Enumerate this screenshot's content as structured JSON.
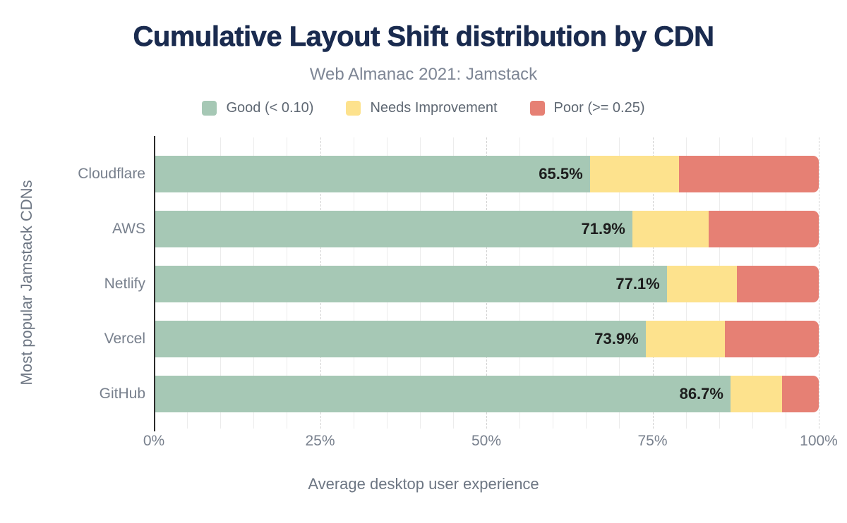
{
  "title": "Cumulative Layout Shift distribution by CDN",
  "subtitle": "Web Almanac 2021: Jamstack",
  "y_axis_title": "Most popular Jamstack CDNs",
  "x_axis_title": "Average desktop user experience",
  "legend": [
    {
      "label": "Good (< 0.10)"
    },
    {
      "label": "Needs Improvement"
    },
    {
      "label": "Poor (>= 0.25)"
    }
  ],
  "colors": {
    "good": "#a6c8b5",
    "needs_improvement": "#fde28d",
    "poor": "#e68074",
    "title_text": "#1a2b4f",
    "subtitle_text": "#7e8695",
    "legend_text": "#5f6873",
    "axis_text": "#78808d",
    "axis_title_text": "#6d7683",
    "data_label_text": "#1d1d1d",
    "axis_line": "#2b2b2b",
    "grid_minor": "#ececec",
    "grid_major": "#d2d2d2"
  },
  "chart_data": {
    "type": "bar",
    "variant": "horizontal-stacked",
    "title": "Cumulative Layout Shift distribution by CDN",
    "subtitle": "Web Almanac 2021: Jamstack",
    "categories": [
      "Cloudflare",
      "AWS",
      "Netlify",
      "Vercel",
      "GitHub"
    ],
    "series": [
      {
        "name": "Good (< 0.10)",
        "values": [
          65.5,
          71.9,
          77.1,
          73.9,
          86.7
        ]
      },
      {
        "name": "Needs Improvement",
        "values": [
          13.4,
          11.5,
          10.6,
          12.0,
          7.8
        ]
      },
      {
        "name": "Poor (>= 0.25)",
        "values": [
          21.1,
          16.6,
          12.3,
          14.1,
          5.5
        ]
      }
    ],
    "bar_labels": [
      "65.5%",
      "71.9%",
      "77.1%",
      "73.9%",
      "86.7%"
    ],
    "xlabel": "Average desktop user experience",
    "ylabel": "Most popular Jamstack CDNs",
    "xlim": [
      0,
      100
    ],
    "x_ticks": [
      "0%",
      "25%",
      "50%",
      "75%",
      "100%"
    ],
    "x_tick_values": [
      0,
      25,
      50,
      75,
      100
    ],
    "grid": "vertical; minor solid every 5%, major dashed every 25%",
    "legend_position": "top-center"
  }
}
